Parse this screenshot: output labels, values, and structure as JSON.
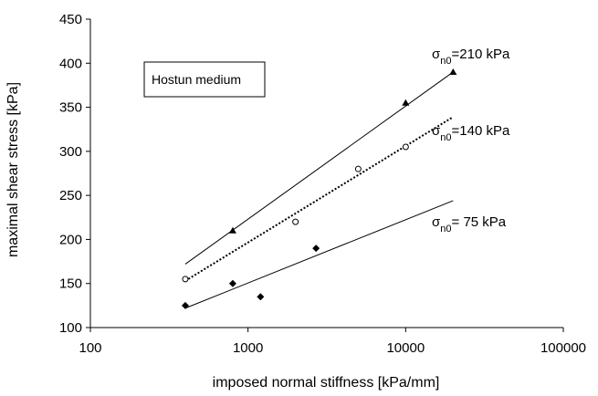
{
  "chart_data": {
    "type": "scatter",
    "title": "",
    "xlabel": "imposed normal stiffness [kPa/mm]",
    "ylabel": "maximal shear stress [kPa]",
    "xscale": "log",
    "xlim": [
      100,
      100000
    ],
    "ylim": [
      100,
      450
    ],
    "xticks": [
      100,
      1000,
      10000,
      100000
    ],
    "yticks": [
      100,
      150,
      200,
      250,
      300,
      350,
      400,
      450
    ],
    "grid": false,
    "annotation_box": "Hostun medium",
    "series": [
      {
        "label_prefix": "σ",
        "label_sub": "n0",
        "label_suffix": "=210 kPa",
        "marker": "triangle",
        "line": "solid",
        "points": [
          [
            800,
            210
          ],
          [
            10000,
            355
          ],
          [
            20000,
            390
          ]
        ],
        "fit": [
          [
            400,
            172
          ],
          [
            20000,
            390
          ]
        ]
      },
      {
        "label_prefix": "σ",
        "label_sub": "n0",
        "label_suffix": "=140 kPa",
        "marker": "circle-open",
        "line": "dotted",
        "points": [
          [
            400,
            155
          ],
          [
            2000,
            220
          ],
          [
            5000,
            280
          ],
          [
            10000,
            305
          ]
        ],
        "fit": [
          [
            400,
            153
          ],
          [
            20000,
            339
          ]
        ]
      },
      {
        "label_prefix": "σ",
        "label_sub": "n0",
        "label_suffix": "= 75 kPa",
        "marker": "diamond",
        "line": "solid",
        "points": [
          [
            400,
            125
          ],
          [
            800,
            150
          ],
          [
            1200,
            135
          ],
          [
            2700,
            190
          ]
        ],
        "fit": [
          [
            400,
            122
          ],
          [
            20000,
            244
          ]
        ]
      }
    ]
  }
}
